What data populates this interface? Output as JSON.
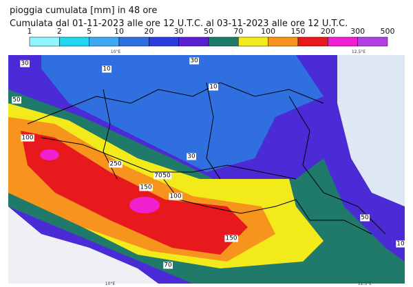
{
  "header": {
    "title": "pioggia cumulata [mm] in 48 ore",
    "subtitle": "Cumulata dal 01-11-2023 alle ore 12 U.T.C. al 03-11-2023 alle ore 12 U.T.C."
  },
  "legend": {
    "items": [
      {
        "label": "1",
        "color": "#8ff5ff"
      },
      {
        "label": "2",
        "color": "#1fd8f0"
      },
      {
        "label": "5",
        "color": "#3fa8f0"
      },
      {
        "label": "10",
        "color": "#2f6fe0"
      },
      {
        "label": "20",
        "color": "#2a3ee0"
      },
      {
        "label": "30",
        "color": "#5a1fd0"
      },
      {
        "label": "50",
        "color": "#1f7a6a"
      },
      {
        "label": "70",
        "color": "#f2ea1a"
      },
      {
        "label": "100",
        "color": "#f7941d"
      },
      {
        "label": "150",
        "color": "#e8191c"
      },
      {
        "label": "200",
        "color": "#f020d0"
      },
      {
        "label": "300",
        "color": "#b040e0"
      },
      {
        "label": "500",
        "color": "#7a0a78"
      }
    ]
  },
  "graticule": {
    "top": [
      "10°E",
      "12.5°E"
    ],
    "bottom": [
      "10°E",
      "12.5°E"
    ]
  },
  "map": {
    "contour_labels": [
      "30",
      "50",
      "100",
      "10",
      "250",
      "150",
      "70",
      "50",
      "100",
      "150",
      "70",
      "30",
      "10",
      "30",
      "50",
      "10"
    ]
  }
}
